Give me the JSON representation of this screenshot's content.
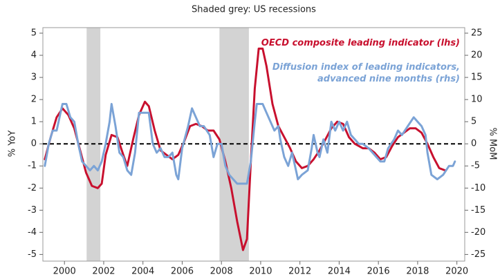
{
  "chart_data": {
    "type": "line",
    "title": "Shaded grey: US recessions",
    "y_label": "% YoY",
    "y2_label": "% MoM",
    "xlim": [
      1998.9,
      2020.4
    ],
    "xticks": [
      2000,
      2002,
      2004,
      2006,
      2008,
      2010,
      2012,
      2014,
      2016,
      2018,
      2020
    ],
    "ylim": [
      -5.3,
      5.25
    ],
    "yticks": [
      -5,
      -4,
      -3,
      -2,
      -1,
      0,
      1,
      2,
      3,
      4,
      5
    ],
    "y2lim": [
      -26.5,
      26.25
    ],
    "y2ticks": [
      -25,
      -20,
      -15,
      -10,
      -5,
      0,
      5,
      10,
      15,
      20,
      25
    ],
    "zero_line": true,
    "recessions": [
      [
        2001.13,
        2001.83
      ],
      [
        2007.9,
        2009.4
      ]
    ],
    "recession_color": "#d3d3d3",
    "series": [
      {
        "name": "OECD composite leading indicator (lhs)",
        "color": "#c8102e",
        "axis": "y",
        "x": [
          1999.0,
          1999.3,
          1999.6,
          1999.9,
          2000.2,
          2000.5,
          2000.8,
          2001.1,
          2001.4,
          2001.7,
          2001.9,
          2002.1,
          2002.4,
          2002.7,
          2003.0,
          2003.2,
          2003.5,
          2003.8,
          2004.1,
          2004.3,
          2004.6,
          2004.9,
          2005.2,
          2005.5,
          2005.8,
          2006.1,
          2006.4,
          2006.7,
          2007.0,
          2007.3,
          2007.6,
          2007.9,
          2008.2,
          2008.5,
          2008.8,
          2009.1,
          2009.3,
          2009.5,
          2009.7,
          2009.9,
          2010.1,
          2010.3,
          2010.6,
          2010.9,
          2011.2,
          2011.5,
          2011.8,
          2012.1,
          2012.4,
          2012.7,
          2013.0,
          2013.3,
          2013.6,
          2013.9,
          2014.2,
          2014.5,
          2014.8,
          2015.2,
          2015.5,
          2015.8,
          2016.1,
          2016.4,
          2016.7,
          2017.0,
          2017.3,
          2017.6,
          2017.9,
          2018.2,
          2018.5,
          2018.8,
          2019.1,
          2019.4
        ],
        "values": [
          -0.7,
          0.3,
          1.2,
          1.6,
          1.3,
          0.7,
          -0.3,
          -1.3,
          -1.9,
          -2.0,
          -1.8,
          -0.5,
          0.4,
          0.3,
          -0.5,
          -1.0,
          0.2,
          1.3,
          1.9,
          1.7,
          0.6,
          -0.3,
          -0.5,
          -0.7,
          -0.5,
          0.1,
          0.8,
          0.9,
          0.8,
          0.6,
          0.6,
          0.2,
          -0.8,
          -2.0,
          -3.5,
          -4.8,
          -4.3,
          -0.8,
          2.5,
          4.3,
          4.3,
          3.5,
          1.8,
          0.8,
          0.3,
          -0.2,
          -0.8,
          -1.1,
          -1.0,
          -0.7,
          -0.3,
          0.2,
          0.7,
          1.0,
          0.9,
          0.3,
          0.0,
          -0.2,
          -0.2,
          -0.4,
          -0.7,
          -0.6,
          -0.1,
          0.3,
          0.5,
          0.7,
          0.7,
          0.5,
          0.0,
          -0.6,
          -1.1,
          -1.2
        ]
      },
      {
        "name": "Diffusion index of leading indicators, advanced nine months (rhs)",
        "color": "#7ba3d6",
        "axis": "y2",
        "x": [
          1999.0,
          1999.2,
          1999.4,
          1999.6,
          1999.8,
          1999.9,
          2000.1,
          2000.3,
          2000.5,
          2000.7,
          2000.9,
          2001.1,
          2001.3,
          2001.5,
          2001.7,
          2001.9,
          2002.1,
          2002.3,
          2002.4,
          2002.6,
          2002.8,
          2003.0,
          2003.2,
          2003.4,
          2003.6,
          2003.8,
          2004.0,
          2004.3,
          2004.5,
          2004.7,
          2004.9,
          2005.1,
          2005.3,
          2005.5,
          2005.7,
          2005.8,
          2006.0,
          2006.3,
          2006.5,
          2006.7,
          2006.9,
          2007.1,
          2007.4,
          2007.6,
          2007.8,
          2008.0,
          2008.2,
          2008.4,
          2008.6,
          2008.8,
          2009.0,
          2009.3,
          2009.5,
          2009.7,
          2009.8,
          2010.1,
          2010.3,
          2010.5,
          2010.7,
          2010.9,
          2011.0,
          2011.2,
          2011.4,
          2011.6,
          2011.8,
          2011.9,
          2012.1,
          2012.4,
          2012.6,
          2012.7,
          2012.9,
          2013.0,
          2013.2,
          2013.4,
          2013.6,
          2013.8,
          2014.0,
          2014.2,
          2014.4,
          2014.6,
          2014.8,
          2015.0,
          2015.2,
          2015.5,
          2015.7,
          2015.9,
          2016.1,
          2016.3,
          2016.5,
          2016.8,
          2017.0,
          2017.2,
          2017.5,
          2017.8,
          2018.0,
          2018.2,
          2018.4,
          2018.5,
          2018.7,
          2019.0,
          2019.3,
          2019.6,
          2019.8,
          2019.9
        ],
        "values": [
          -5,
          0,
          3,
          3,
          7,
          9,
          9,
          6,
          5,
          0,
          -4,
          -5,
          -6,
          -5,
          -6,
          -4,
          0,
          5,
          9,
          4,
          -2,
          -3,
          -6,
          -7,
          -2,
          7,
          7,
          7,
          0,
          -2,
          -1,
          -3,
          -3,
          -2,
          -7,
          -8,
          -1,
          4,
          8,
          6,
          4,
          4,
          2,
          -3,
          0,
          0,
          -5,
          -7,
          -8,
          -9,
          -9,
          -9,
          -4,
          5,
          9,
          9,
          7,
          5,
          3,
          4,
          1,
          -3,
          -5,
          -2,
          -6,
          -8,
          -7,
          -6,
          -1,
          2,
          -2,
          -3,
          1,
          -2,
          5,
          3,
          5,
          3,
          5,
          2,
          1,
          0,
          0,
          -1,
          -2,
          -3,
          -4,
          -4,
          -1,
          1,
          3,
          2,
          4,
          6,
          5,
          4,
          2,
          -2,
          -7,
          -8,
          -7,
          -5,
          -5,
          -4
        ]
      }
    ]
  }
}
